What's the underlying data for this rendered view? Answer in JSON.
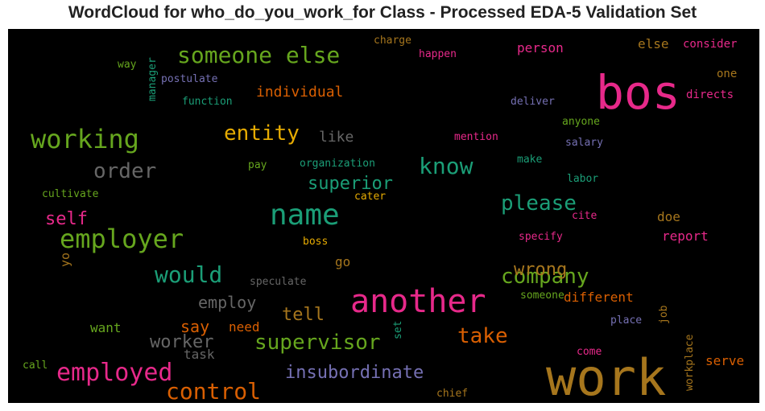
{
  "chart_data": {
    "type": "wordcloud",
    "title": "WordCloud for who_do_you_work_for Class - Processed EDA-5 Validation Set",
    "background": "#000000",
    "words": [
      {
        "text": "work",
        "color": "#a6761d"
      },
      {
        "text": "bos",
        "color": "#e7298a"
      },
      {
        "text": "another",
        "color": "#e7298a"
      },
      {
        "text": "name",
        "color": "#1b9e77"
      },
      {
        "text": "employer",
        "color": "#66a61e"
      },
      {
        "text": "working",
        "color": "#66a61e"
      },
      {
        "text": "employed",
        "color": "#e7298a"
      },
      {
        "text": "someone else",
        "color": "#66a61e"
      },
      {
        "text": "control",
        "color": "#d95f02"
      },
      {
        "text": "know",
        "color": "#1b9e77"
      },
      {
        "text": "supervisor",
        "color": "#66a61e"
      },
      {
        "text": "would",
        "color": "#1b9e77"
      },
      {
        "text": "company",
        "color": "#66a61e"
      },
      {
        "text": "entity",
        "color": "#e6ab02"
      },
      {
        "text": "please",
        "color": "#1b9e77"
      },
      {
        "text": "take",
        "color": "#d95f02"
      },
      {
        "text": "order",
        "color": "#666666"
      },
      {
        "text": "insubordinate",
        "color": "#7570b3"
      },
      {
        "text": "superior",
        "color": "#1b9e77"
      },
      {
        "text": "worker",
        "color": "#666666"
      },
      {
        "text": "wrong",
        "color": "#a6761d"
      },
      {
        "text": "tell",
        "color": "#a6761d"
      },
      {
        "text": "employ",
        "color": "#666666"
      },
      {
        "text": "self",
        "color": "#e7298a"
      },
      {
        "text": "say",
        "color": "#d95f02"
      },
      {
        "text": "individual",
        "color": "#d95f02"
      },
      {
        "text": "like",
        "color": "#666666"
      },
      {
        "text": "different",
        "color": "#d95f02"
      },
      {
        "text": "report",
        "color": "#e7298a"
      },
      {
        "text": "person",
        "color": "#e7298a"
      },
      {
        "text": "else",
        "color": "#a6761d"
      },
      {
        "text": "doe",
        "color": "#a6761d"
      },
      {
        "text": "need",
        "color": "#d95f02"
      },
      {
        "text": "want",
        "color": "#66a61e"
      },
      {
        "text": "task",
        "color": "#666666"
      },
      {
        "text": "serve",
        "color": "#d95f02"
      },
      {
        "text": "go",
        "color": "#a6761d"
      },
      {
        "text": "consider",
        "color": "#e7298a"
      },
      {
        "text": "directs",
        "color": "#e7298a"
      },
      {
        "text": "one",
        "color": "#a6761d"
      },
      {
        "text": "postulate",
        "color": "#7570b3"
      },
      {
        "text": "function",
        "color": "#1b9e77"
      },
      {
        "text": "way",
        "color": "#66a61e"
      },
      {
        "text": "charge",
        "color": "#a6761d"
      },
      {
        "text": "happen",
        "color": "#e7298a"
      },
      {
        "text": "deliver",
        "color": "#7570b3"
      },
      {
        "text": "anyone",
        "color": "#66a61e"
      },
      {
        "text": "mention",
        "color": "#e7298a"
      },
      {
        "text": "salary",
        "color": "#7570b3"
      },
      {
        "text": "make",
        "color": "#1b9e77"
      },
      {
        "text": "organization",
        "color": "#1b9e77"
      },
      {
        "text": "pay",
        "color": "#66a61e"
      },
      {
        "text": "labor",
        "color": "#1b9e77"
      },
      {
        "text": "cater",
        "color": "#e6ab02"
      },
      {
        "text": "cultivate",
        "color": "#66a61e"
      },
      {
        "text": "cite",
        "color": "#e7298a"
      },
      {
        "text": "specify",
        "color": "#e7298a"
      },
      {
        "text": "boss",
        "color": "#e6ab02"
      },
      {
        "text": "speculate",
        "color": "#666666"
      },
      {
        "text": "someone",
        "color": "#66a61e"
      },
      {
        "text": "place",
        "color": "#7570b3"
      },
      {
        "text": "come",
        "color": "#e7298a"
      },
      {
        "text": "chief",
        "color": "#a6761d"
      },
      {
        "text": "call",
        "color": "#66a61e"
      },
      {
        "text": "manager",
        "color": "#1b9e77"
      },
      {
        "text": "yo",
        "color": "#a6761d"
      },
      {
        "text": "set",
        "color": "#1b9e77"
      },
      {
        "text": "job",
        "color": "#a6761d"
      },
      {
        "text": "workplace",
        "color": "#a6761d"
      }
    ]
  }
}
